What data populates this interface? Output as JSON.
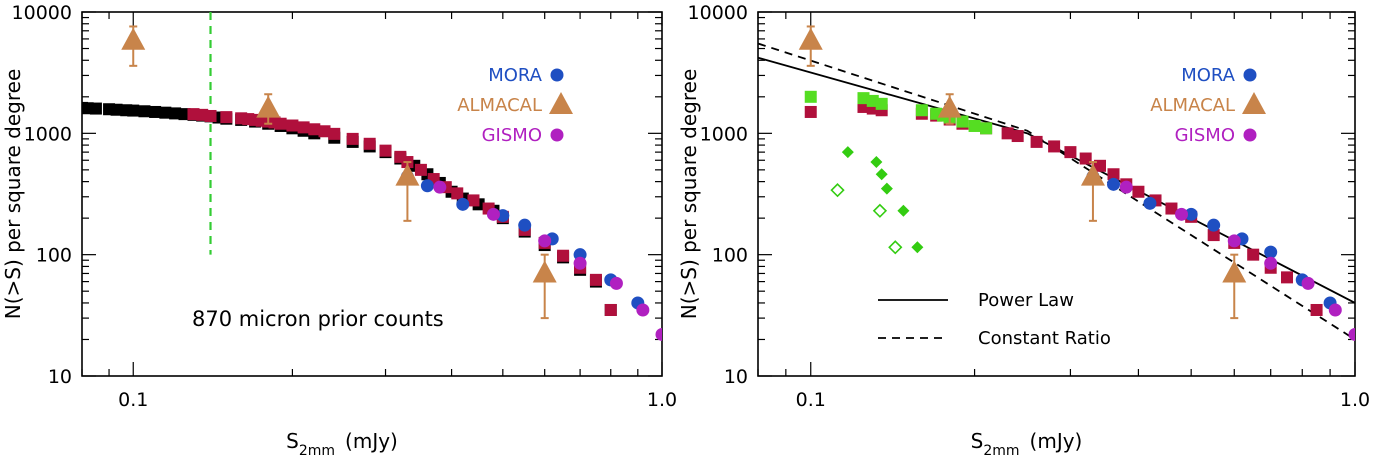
{
  "chart_data": [
    {
      "type": "scatter",
      "xlabel": "S",
      "xlabel_sub": "2mm",
      "xlabel_unit": "(mJy)",
      "ylabel": "N(>S)  per  square  degree",
      "xscale": "log",
      "yscale": "log",
      "xlim": [
        0.08,
        1.0
      ],
      "ylim": [
        10,
        10000
      ],
      "x_ticks": [
        {
          "v": 0.1,
          "label": "0.1"
        },
        {
          "v": 1.0,
          "label": "1.0"
        }
      ],
      "y_ticks": [
        {
          "v": 10,
          "label": "10"
        },
        {
          "v": 100,
          "label": "100"
        },
        {
          "v": 1000,
          "label": "1000"
        },
        {
          "v": 10000,
          "label": "10000"
        }
      ],
      "annotation": "870 micron prior counts",
      "legend": {
        "placement": "top-right",
        "entries": [
          {
            "label": "MORA",
            "color": "#1f4fc2",
            "marker": "circle"
          },
          {
            "label": "ALMACAL",
            "color": "#c8844a",
            "marker": "triangle"
          },
          {
            "label": "GISMO",
            "color": "#b020c0",
            "marker": "circle"
          }
        ]
      },
      "vline": {
        "x": 0.14,
        "y_range": [
          100,
          10000
        ],
        "color": "#33cc33",
        "style": "dashed"
      },
      "series": [
        {
          "name": "",
          "marker": "square",
          "color": "#000000",
          "points": [
            [
              0.08,
              1620
            ],
            [
              0.082,
              1610
            ],
            [
              0.085,
              1600
            ],
            [
              0.09,
              1580
            ],
            [
              0.093,
              1565
            ],
            [
              0.097,
              1550
            ],
            [
              0.1,
              1540
            ],
            [
              0.105,
              1520
            ],
            [
              0.11,
              1500
            ],
            [
              0.115,
              1480
            ],
            [
              0.12,
              1460
            ],
            [
              0.125,
              1440
            ],
            [
              0.13,
              1420
            ],
            [
              0.135,
              1400
            ],
            [
              0.14,
              1380
            ],
            [
              0.145,
              1350
            ],
            [
              0.15,
              1320
            ],
            [
              0.16,
              1290
            ],
            [
              0.17,
              1250
            ],
            [
              0.18,
              1200
            ],
            [
              0.19,
              1150
            ],
            [
              0.2,
              1100
            ],
            [
              0.21,
              1050
            ],
            [
              0.22,
              1000
            ],
            [
              0.24,
              920
            ],
            [
              0.26,
              850
            ],
            [
              0.28,
              780
            ],
            [
              0.3,
              700
            ],
            [
              0.32,
              620
            ],
            [
              0.34,
              540
            ],
            [
              0.36,
              460
            ],
            [
              0.38,
              390
            ],
            [
              0.4,
              330
            ],
            [
              0.42,
              290
            ],
            [
              0.45,
              260
            ],
            [
              0.48,
              230
            ],
            [
              0.5,
              200
            ],
            [
              0.55,
              155
            ],
            [
              0.6,
              120
            ],
            [
              0.65,
              95
            ],
            [
              0.7,
              75
            ],
            [
              0.75,
              60
            ],
            [
              0.8,
              35
            ]
          ]
        },
        {
          "name": "",
          "marker": "square",
          "color": "#b0103c",
          "points": [
            [
              0.13,
              1440
            ],
            [
              0.135,
              1420
            ],
            [
              0.14,
              1390
            ],
            [
              0.15,
              1360
            ],
            [
              0.16,
              1330
            ],
            [
              0.165,
              1310
            ],
            [
              0.17,
              1290
            ],
            [
              0.175,
              1270
            ],
            [
              0.18,
              1250
            ],
            [
              0.185,
              1230
            ],
            [
              0.19,
              1200
            ],
            [
              0.2,
              1160
            ],
            [
              0.21,
              1120
            ],
            [
              0.22,
              1080
            ],
            [
              0.23,
              1040
            ],
            [
              0.24,
              990
            ],
            [
              0.26,
              900
            ],
            [
              0.28,
              820
            ],
            [
              0.3,
              720
            ],
            [
              0.32,
              640
            ],
            [
              0.33,
              580
            ],
            [
              0.35,
              500
            ],
            [
              0.37,
              420
            ],
            [
              0.39,
              360
            ],
            [
              0.41,
              320
            ],
            [
              0.44,
              280
            ],
            [
              0.47,
              240
            ],
            [
              0.5,
              205
            ],
            [
              0.55,
              160
            ],
            [
              0.6,
              125
            ],
            [
              0.65,
              98
            ],
            [
              0.7,
              78
            ],
            [
              0.75,
              62
            ],
            [
              0.8,
              35
            ]
          ]
        },
        {
          "name": "MORA",
          "marker": "circle",
          "color": "#1f4fc2",
          "points": [
            [
              0.33,
              440
            ],
            [
              0.36,
              370
            ],
            [
              0.42,
              260
            ],
            [
              0.5,
              210
            ],
            [
              0.55,
              175
            ],
            [
              0.62,
              135
            ],
            [
              0.7,
              100
            ],
            [
              0.8,
              62
            ],
            [
              0.9,
              40
            ]
          ]
        },
        {
          "name": "GISMO",
          "marker": "circle",
          "color": "#b020c0",
          "points": [
            [
              0.38,
              360
            ],
            [
              0.48,
              215
            ],
            [
              0.6,
              130
            ],
            [
              0.7,
              85
            ],
            [
              0.82,
              58
            ],
            [
              0.92,
              35
            ],
            [
              1.0,
              22
            ]
          ]
        },
        {
          "name": "ALMACAL",
          "marker": "triangle",
          "color": "#c8844a",
          "points": [
            {
              "x": 0.1,
              "y": 5800,
              "err_up": 7600,
              "err_down": 3600
            },
            {
              "x": 0.18,
              "y": 1600,
              "err_up": 2100,
              "err_down": 1200
            },
            {
              "x": 0.33,
              "y": 440,
              "err_up": 580,
              "err_down": 190
            },
            {
              "x": 0.6,
              "y": 70,
              "err_up": 100,
              "err_down": 30
            }
          ]
        }
      ]
    },
    {
      "type": "scatter",
      "xlabel": "S",
      "xlabel_sub": "2mm",
      "xlabel_unit": "(mJy)",
      "ylabel": "N(>S)  per  square  degree",
      "xscale": "log",
      "yscale": "log",
      "xlim": [
        0.08,
        1.0
      ],
      "ylim": [
        10,
        10000
      ],
      "x_ticks": [
        {
          "v": 0.1,
          "label": "0.1"
        },
        {
          "v": 1.0,
          "label": "1.0"
        }
      ],
      "y_ticks": [
        {
          "v": 10,
          "label": "10"
        },
        {
          "v": 100,
          "label": "100"
        },
        {
          "v": 1000,
          "label": "1000"
        },
        {
          "v": 10000,
          "label": "10000"
        }
      ],
      "legend": {
        "placement": "top-right",
        "entries": [
          {
            "label": "MORA",
            "color": "#1f4fc2",
            "marker": "circle"
          },
          {
            "label": "ALMACAL",
            "color": "#c8844a",
            "marker": "triangle"
          },
          {
            "label": "GISMO",
            "color": "#b020c0",
            "marker": "circle"
          }
        ]
      },
      "line_legend": {
        "placement": "bottom-left",
        "entries": [
          {
            "label": "Power Law",
            "style": "solid"
          },
          {
            "label": "Constant Ratio",
            "style": "dashed"
          }
        ]
      },
      "lines": [
        {
          "name": "Power Law",
          "style": "solid",
          "color": "#000000",
          "points": [
            [
              0.08,
              4200
            ],
            [
              0.25,
              1000
            ],
            [
              1.0,
              40
            ]
          ]
        },
        {
          "name": "Constant Ratio",
          "style": "dashed",
          "color": "#000000",
          "points": [
            [
              0.08,
              5500
            ],
            [
              0.25,
              1050
            ],
            [
              1.0,
              20
            ]
          ]
        }
      ],
      "series": [
        {
          "name": "",
          "marker": "square",
          "color": "#b0103c",
          "points": [
            [
              0.1,
              1500
            ],
            [
              0.125,
              1650
            ],
            [
              0.13,
              1600
            ],
            [
              0.135,
              1550
            ],
            [
              0.16,
              1450
            ],
            [
              0.17,
              1400
            ],
            [
              0.18,
              1300
            ],
            [
              0.19,
              1200
            ],
            [
              0.21,
              1100
            ],
            [
              0.23,
              1000
            ],
            [
              0.24,
              950
            ],
            [
              0.26,
              850
            ],
            [
              0.28,
              780
            ],
            [
              0.3,
              700
            ],
            [
              0.32,
              620
            ],
            [
              0.34,
              540
            ],
            [
              0.36,
              460
            ],
            [
              0.38,
              380
            ],
            [
              0.4,
              330
            ],
            [
              0.43,
              280
            ],
            [
              0.46,
              240
            ],
            [
              0.5,
              205
            ],
            [
              0.55,
              145
            ],
            [
              0.6,
              125
            ],
            [
              0.65,
              100
            ],
            [
              0.7,
              78
            ],
            [
              0.75,
              65
            ],
            [
              0.85,
              35
            ]
          ]
        },
        {
          "name": "",
          "marker": "square",
          "color": "#55dd22",
          "points": [
            [
              0.1,
              2000
            ],
            [
              0.125,
              1950
            ],
            [
              0.13,
              1850
            ],
            [
              0.135,
              1750
            ],
            [
              0.16,
              1550
            ],
            [
              0.17,
              1450
            ],
            [
              0.175,
              1400
            ],
            [
              0.18,
              1350
            ],
            [
              0.19,
              1250
            ],
            [
              0.2,
              1150
            ],
            [
              0.21,
              1100
            ]
          ]
        },
        {
          "name": "",
          "marker": "diamond-filled",
          "color": "#33cc11",
          "points": [
            [
              0.117,
              700
            ],
            [
              0.132,
              580
            ],
            [
              0.135,
              460
            ],
            [
              0.138,
              350
            ],
            [
              0.148,
              230
            ],
            [
              0.157,
              115
            ]
          ]
        },
        {
          "name": "",
          "marker": "diamond-open",
          "color": "#33cc11",
          "points": [
            [
              0.112,
              340
            ],
            [
              0.134,
              230
            ],
            [
              0.143,
              115
            ]
          ]
        },
        {
          "name": "MORA",
          "marker": "circle",
          "color": "#1f4fc2",
          "points": [
            [
              0.33,
              440
            ],
            [
              0.36,
              380
            ],
            [
              0.42,
              265
            ],
            [
              0.5,
              215
            ],
            [
              0.55,
              175
            ],
            [
              0.62,
              135
            ],
            [
              0.7,
              105
            ],
            [
              0.8,
              62
            ],
            [
              0.9,
              40
            ]
          ]
        },
        {
          "name": "GISMO",
          "marker": "circle",
          "color": "#b020c0",
          "points": [
            [
              0.38,
              360
            ],
            [
              0.48,
              215
            ],
            [
              0.6,
              130
            ],
            [
              0.7,
              85
            ],
            [
              0.82,
              58
            ],
            [
              0.92,
              35
            ],
            [
              1.0,
              22
            ]
          ]
        },
        {
          "name": "ALMACAL",
          "marker": "triangle",
          "color": "#c8844a",
          "points": [
            {
              "x": 0.1,
              "y": 5800,
              "err_up": 7600,
              "err_down": 3600
            },
            {
              "x": 0.18,
              "y": 1600,
              "err_up": 2100,
              "err_down": 1200
            },
            {
              "x": 0.33,
              "y": 440,
              "err_up": 580,
              "err_down": 190
            },
            {
              "x": 0.6,
              "y": 70,
              "err_up": 100,
              "err_down": 30
            }
          ]
        }
      ]
    }
  ]
}
